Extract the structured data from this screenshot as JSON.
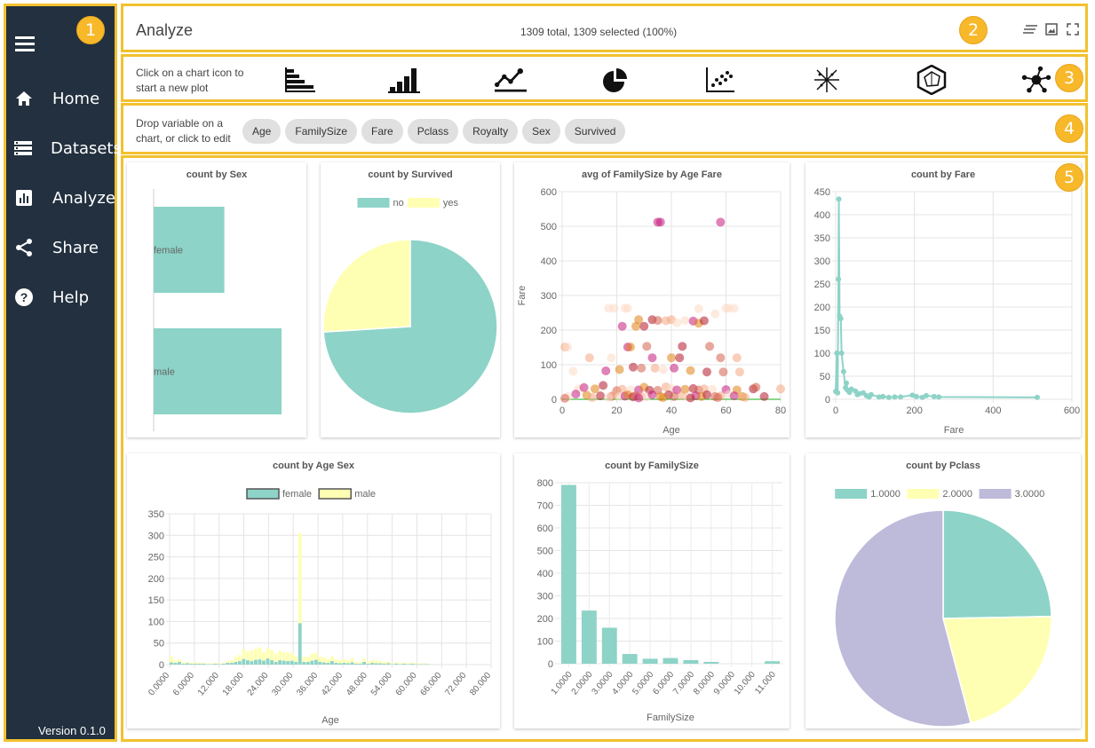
{
  "sidebar": {
    "items": [
      {
        "label": "Home",
        "icon": "home-icon"
      },
      {
        "label": "Datasets",
        "icon": "datasets-icon"
      },
      {
        "label": "Analyze",
        "icon": "analyze-icon"
      },
      {
        "label": "Share",
        "icon": "share-icon"
      },
      {
        "label": "Help",
        "icon": "help-icon"
      }
    ],
    "version": "Version 0.1.0"
  },
  "badges": [
    "1",
    "2",
    "3",
    "4",
    "5"
  ],
  "header": {
    "title": "Analyze",
    "status": "1309 total, 1309 selected (100%)"
  },
  "plotbar": {
    "hint_line1": "Click on a chart icon to",
    "hint_line2": "start a new plot",
    "icons": [
      "horizontal-bar-chart-icon",
      "bar-chart-icon",
      "line-chart-icon",
      "pie-chart-icon",
      "scatter-chart-icon",
      "radial-chart-icon",
      "radar-chart-icon",
      "network-chart-icon"
    ]
  },
  "variables": {
    "hint_line1": "Drop variable on a",
    "hint_line2": "chart, or click to edit",
    "chips": [
      "Age",
      "FamilySize",
      "Fare",
      "Pclass",
      "Royalty",
      "Sex",
      "Survived"
    ]
  },
  "colors": {
    "teal": "#8dd3c7",
    "yellow": "#ffffb3",
    "purple": "#bebada",
    "sidebar": "#22303f",
    "accent": "#f2c12e"
  },
  "charts": {
    "sex": {
      "title": "count by Sex",
      "chart_data": {
        "type": "bar",
        "orientation": "horizontal",
        "categories": [
          "female",
          "male"
        ],
        "values": [
          466,
          843
        ]
      }
    },
    "survived": {
      "title": "count by Survived",
      "chart_data": {
        "type": "pie",
        "categories": [
          "no",
          "yes"
        ],
        "values": [
          0.74,
          0.26
        ],
        "legend": "top"
      }
    },
    "scatter": {
      "title": "avg of FamilySize by Age Fare",
      "chart_data": {
        "type": "scatter",
        "xlabel": "Age",
        "ylabel": "Fare",
        "xlim": [
          0,
          80
        ],
        "ylim": [
          0,
          600
        ],
        "xticks": [
          "0",
          "20",
          "40",
          "60",
          "80"
        ],
        "yticks": [
          "0",
          "100",
          "200",
          "300",
          "400",
          "500",
          "600"
        ],
        "points": [
          [
            35,
            512
          ],
          [
            36,
            512
          ],
          [
            58,
            512
          ],
          [
            50,
            262
          ],
          [
            19,
            263
          ],
          [
            24,
            263
          ],
          [
            23,
            263
          ],
          [
            17,
            263
          ],
          [
            60,
            263
          ],
          [
            61,
            263
          ],
          [
            63,
            263
          ],
          [
            28,
            230
          ],
          [
            33,
            230
          ],
          [
            35,
            228
          ],
          [
            40,
            230
          ],
          [
            45,
            228
          ],
          [
            48,
            226
          ],
          [
            50,
            220
          ],
          [
            52,
            227
          ],
          [
            56,
            247
          ],
          [
            38,
            227
          ],
          [
            42,
            221
          ],
          [
            22,
            211
          ],
          [
            27,
            211
          ],
          [
            30,
            211
          ],
          [
            31,
            153
          ],
          [
            1,
            151
          ],
          [
            2,
            151
          ],
          [
            24,
            151
          ],
          [
            25,
            151
          ],
          [
            44,
            153
          ],
          [
            54,
            153
          ],
          [
            10,
            120
          ],
          [
            18,
            120
          ],
          [
            33,
            120
          ],
          [
            40,
            120
          ],
          [
            43,
            120
          ],
          [
            58,
            120
          ],
          [
            64,
            120
          ],
          [
            4,
            81
          ],
          [
            16,
            82
          ],
          [
            21,
            86
          ],
          [
            26,
            93
          ],
          [
            29,
            90
          ],
          [
            34,
            90
          ],
          [
            37,
            86
          ],
          [
            41,
            90
          ],
          [
            47,
            83
          ],
          [
            53,
            79
          ],
          [
            59,
            79
          ],
          [
            65,
            79
          ],
          [
            6,
            30
          ],
          [
            8,
            34
          ],
          [
            12,
            30
          ],
          [
            15,
            40
          ],
          [
            20,
            25
          ],
          [
            22,
            29
          ],
          [
            25,
            27
          ],
          [
            28,
            27
          ],
          [
            30,
            35
          ],
          [
            32,
            26
          ],
          [
            35,
            26
          ],
          [
            38,
            36
          ],
          [
            40,
            31
          ],
          [
            42,
            27
          ],
          [
            45,
            29
          ],
          [
            48,
            31
          ],
          [
            50,
            27
          ],
          [
            52,
            30
          ],
          [
            55,
            29
          ],
          [
            60,
            28
          ],
          [
            64,
            27
          ],
          [
            70,
            30
          ],
          [
            71,
            35
          ],
          [
            80,
            30
          ],
          [
            2,
            8
          ],
          [
            5,
            15
          ],
          [
            9,
            12
          ],
          [
            14,
            10
          ],
          [
            18,
            8
          ],
          [
            19,
            13
          ],
          [
            21,
            8
          ],
          [
            23,
            9
          ],
          [
            24,
            13
          ],
          [
            26,
            7
          ],
          [
            27,
            10
          ],
          [
            29,
            8
          ],
          [
            31,
            7
          ],
          [
            33,
            13
          ],
          [
            36,
            8
          ],
          [
            39,
            13
          ],
          [
            41,
            8
          ],
          [
            44,
            10
          ],
          [
            46,
            7
          ],
          [
            49,
            10
          ],
          [
            51,
            8
          ],
          [
            53,
            13
          ],
          [
            56,
            8
          ],
          [
            58,
            10
          ],
          [
            61,
            14
          ],
          [
            63,
            10
          ],
          [
            66,
            8
          ],
          [
            74,
            8
          ],
          [
            1,
            3
          ],
          [
            11,
            5
          ],
          [
            17,
            5
          ],
          [
            28,
            4
          ],
          [
            37,
            5
          ],
          [
            47,
            4
          ],
          [
            57,
            5
          ],
          [
            67,
            5
          ]
        ]
      }
    },
    "fare": {
      "title": "count by Fare",
      "chart_data": {
        "type": "line",
        "xlabel": "Fare",
        "xlim": [
          0,
          600
        ],
        "ylim": [
          0,
          450
        ],
        "xticks": [
          "0",
          "200",
          "400",
          "600"
        ],
        "yticks": [
          "0",
          "50",
          "100",
          "150",
          "200",
          "250",
          "300",
          "350",
          "400",
          "450"
        ],
        "x": [
          0,
          3,
          5,
          7,
          8,
          10,
          13,
          15,
          20,
          25,
          27,
          30,
          35,
          40,
          50,
          55,
          60,
          70,
          78,
          85,
          90,
          110,
          120,
          135,
          150,
          165,
          195,
          205,
          220,
          230,
          250,
          262,
          512
        ],
        "y": [
          17,
          100,
          14,
          260,
          434,
          180,
          175,
          100,
          60,
          25,
          35,
          20,
          15,
          22,
          18,
          10,
          12,
          14,
          8,
          5,
          10,
          5,
          6,
          4,
          5,
          5,
          9,
          6,
          4,
          8,
          6,
          5,
          4
        ]
      }
    },
    "agesex": {
      "title": "count by Age Sex",
      "chart_data": {
        "type": "bar",
        "stacked": true,
        "xlabel": "Age",
        "xlim": [
          0,
          80
        ],
        "ylim": [
          0,
          350
        ],
        "xticks": [
          "0.0000",
          "6.0000",
          "12.000",
          "18.000",
          "24.000",
          "30.000",
          "36.000",
          "42.000",
          "48.000",
          "54.000",
          "60.000",
          "66.000",
          "72.000",
          "80.000"
        ],
        "yticks": [
          "0",
          "50",
          "100",
          "150",
          "200",
          "250",
          "300",
          "350"
        ],
        "legend": "top",
        "series": [
          {
            "name": "female",
            "x": [
              0,
              1,
              2,
              3,
              4,
              5,
              6,
              7,
              8,
              9,
              10,
              11,
              12,
              13,
              14,
              15,
              16,
              17,
              18,
              19,
              20,
              21,
              22,
              23,
              24,
              25,
              26,
              27,
              28,
              29,
              30,
              31,
              32,
              33,
              34,
              35,
              36,
              37,
              38,
              39,
              40,
              41,
              42,
              43,
              44,
              45,
              46,
              47,
              48,
              49,
              50,
              51,
              52,
              53,
              54,
              55,
              56,
              57,
              58,
              59,
              60,
              61,
              62,
              63,
              64
            ],
            "values": [
              5,
              4,
              6,
              2,
              3,
              2,
              2,
              2,
              2,
              1,
              1,
              2,
              1,
              2,
              4,
              4,
              6,
              8,
              13,
              10,
              8,
              11,
              12,
              9,
              14,
              10,
              6,
              10,
              9,
              8,
              9,
              6,
              96,
              6,
              6,
              9,
              11,
              6,
              5,
              4,
              8,
              4,
              3,
              4,
              3,
              5,
              2,
              2,
              6,
              2,
              4,
              3,
              3,
              2,
              3,
              1,
              2,
              1,
              2,
              1,
              2,
              1,
              1,
              1,
              1
            ]
          },
          {
            "name": "male",
            "x": [
              0,
              1,
              2,
              3,
              4,
              5,
              6,
              7,
              8,
              9,
              10,
              11,
              12,
              13,
              14,
              15,
              16,
              17,
              18,
              19,
              20,
              21,
              22,
              23,
              24,
              25,
              26,
              27,
              28,
              29,
              30,
              31,
              32,
              33,
              34,
              35,
              36,
              37,
              38,
              39,
              40,
              41,
              42,
              43,
              44,
              45,
              46,
              47,
              48,
              49,
              50,
              51,
              52,
              53,
              54,
              55,
              56,
              57,
              58,
              59,
              60,
              61,
              62,
              63,
              64
            ],
            "values": [
              14,
              6,
              6,
              3,
              3,
              2,
              3,
              2,
              2,
              2,
              2,
              2,
              2,
              2,
              5,
              6,
              12,
              14,
              23,
              20,
              25,
              26,
              28,
              20,
              24,
              24,
              20,
              22,
              20,
              20,
              18,
              14,
              209,
              12,
              12,
              16,
              17,
              12,
              12,
              9,
              11,
              8,
              7,
              8,
              7,
              10,
              4,
              4,
              8,
              5,
              7,
              6,
              5,
              4,
              4,
              2,
              4,
              2,
              3,
              2,
              3,
              2,
              2,
              2,
              1
            ]
          }
        ]
      }
    },
    "familysize": {
      "title": "count by FamilySize",
      "chart_data": {
        "type": "bar",
        "xlabel": "FamilySize",
        "ylim": [
          0,
          800
        ],
        "yticks": [
          "0",
          "100",
          "200",
          "300",
          "400",
          "500",
          "600",
          "700",
          "800"
        ],
        "categories": [
          "1.0000",
          "2.0000",
          "3.0000",
          "4.0000",
          "5.0000",
          "6.0000",
          "7.0000",
          "8.0000",
          "9.0000",
          "10.000",
          "11.000"
        ],
        "values": [
          790,
          235,
          159,
          43,
          22,
          25,
          16,
          8,
          0,
          0,
          11
        ]
      }
    },
    "pclass": {
      "title": "count by Pclass",
      "chart_data": {
        "type": "pie",
        "categories": [
          "1.0000",
          "2.0000",
          "3.0000"
        ],
        "values": [
          0.247,
          0.212,
          0.541
        ],
        "legend": "top"
      }
    }
  }
}
